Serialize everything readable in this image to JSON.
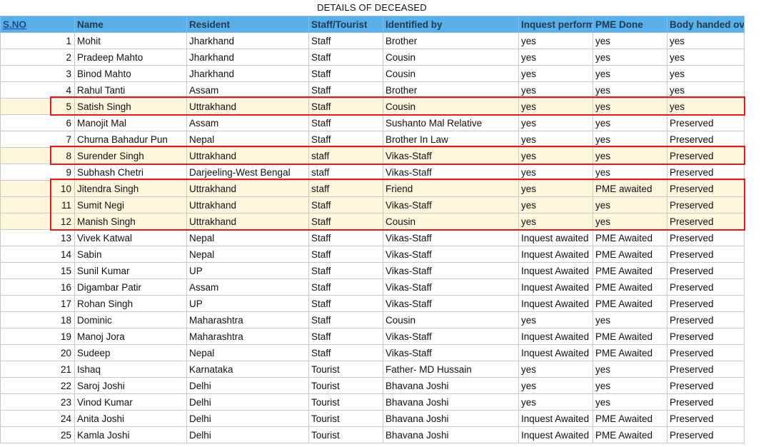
{
  "title": "DETAILS OF DECEASED",
  "columns": [
    "S.NO",
    "Name",
    "Resident",
    "Staff/Tourist",
    "Identified by",
    "Inquest perform",
    "PME Done",
    "Body handed over"
  ],
  "rows": [
    {
      "sno": "1",
      "name": "Mohit",
      "resident": "Jharkhand",
      "type": "Staff",
      "identified_by": "Brother",
      "inquest": "yes",
      "pme": "yes",
      "handed": "yes",
      "highlight": false
    },
    {
      "sno": "2",
      "name": "Pradeep Mahto",
      "resident": "Jharkhand",
      "type": "Staff",
      "identified_by": "Cousin",
      "inquest": "yes",
      "pme": "yes",
      "handed": "yes",
      "highlight": false
    },
    {
      "sno": "3",
      "name": "Binod Mahto",
      "resident": "Jharkhand",
      "type": "Staff",
      "identified_by": "Cousin",
      "inquest": "yes",
      "pme": "yes",
      "handed": "yes",
      "highlight": false
    },
    {
      "sno": "4",
      "name": "Rahul Tanti",
      "resident": "Assam",
      "type": "Staff",
      "identified_by": "Brother",
      "inquest": "yes",
      "pme": "yes",
      "handed": "yes",
      "highlight": false
    },
    {
      "sno": "5",
      "name": "Satish Singh",
      "resident": "Uttrakhand",
      "type": "Staff",
      "identified_by": "Cousin",
      "inquest": "yes",
      "pme": "yes",
      "handed": "yes",
      "highlight": true
    },
    {
      "sno": "6",
      "name": "Manojit Mal",
      "resident": "Assam",
      "type": "Staff",
      "identified_by": "Sushanto Mal Relative",
      "inquest": "yes",
      "pme": "yes",
      "handed": "Preserved",
      "highlight": false
    },
    {
      "sno": "7",
      "name": "Churna Bahadur Pun",
      "resident": "Nepal",
      "type": "Staff",
      "identified_by": "Brother In Law",
      "inquest": "yes",
      "pme": "yes",
      "handed": "Preserved",
      "highlight": false
    },
    {
      "sno": "8",
      "name": "Surender Singh",
      "resident": "Uttrakhand",
      "type": "staff",
      "identified_by": "Vikas-Staff",
      "inquest": "yes",
      "pme": "yes",
      "handed": "Preserved",
      "highlight": true
    },
    {
      "sno": "9",
      "name": "Subhash Chetri",
      "resident": "Darjeeling-West Bengal",
      "type": "staff",
      "identified_by": "Vikas-Staff",
      "inquest": "yes",
      "pme": "yes",
      "handed": "Preserved",
      "highlight": false
    },
    {
      "sno": "10",
      "name": "Jitendra Singh",
      "resident": "Uttrakhand",
      "type": "staff",
      "identified_by": "Friend",
      "inquest": "yes",
      "pme": "PME awaited",
      "handed": "Preserved",
      "highlight": true
    },
    {
      "sno": "11",
      "name": "Sumit Negi",
      "resident": "Uttrakhand",
      "type": "Staff",
      "identified_by": "Vikas-Staff",
      "inquest": "yes",
      "pme": "yes",
      "handed": "Preserved",
      "highlight": true
    },
    {
      "sno": "12",
      "name": "Manish Singh",
      "resident": "Uttrakhand",
      "type": "Staff",
      "identified_by": "Cousin",
      "inquest": "yes",
      "pme": "yes",
      "handed": "Preserved",
      "highlight": true
    },
    {
      "sno": "13",
      "name": "Vivek Katwal",
      "resident": "Nepal",
      "type": "Staff",
      "identified_by": "Vikas-Staff",
      "inquest": "Inquest awaited",
      "pme": "PME Awaited",
      "handed": "Preserved",
      "highlight": false
    },
    {
      "sno": "14",
      "name": "Sabin",
      "resident": "Nepal",
      "type": "Staff",
      "identified_by": "Vikas-Staff",
      "inquest": "Inquest Awaited",
      "pme": "PME Awaited",
      "handed": "Preserved",
      "highlight": false
    },
    {
      "sno": "15",
      "name": "Sunil Kumar",
      "resident": "UP",
      "type": "Staff",
      "identified_by": "Vikas-Staff",
      "inquest": "Inquest Awaited",
      "pme": "PME Awaited",
      "handed": "Preserved",
      "highlight": false
    },
    {
      "sno": "16",
      "name": "Digambar Patir",
      "resident": "Assam",
      "type": "Staff",
      "identified_by": "Vikas-Staff",
      "inquest": "Inquest Awaited",
      "pme": "PME Awaited",
      "handed": "Preserved",
      "highlight": false
    },
    {
      "sno": "17",
      "name": "Rohan Singh",
      "resident": "UP",
      "type": "Staff",
      "identified_by": "Vikas-Staff",
      "inquest": "Inquest Awaited",
      "pme": "PME Awaited",
      "handed": "Preserved",
      "highlight": false
    },
    {
      "sno": "18",
      "name": "Dominic",
      "resident": "Maharashtra",
      "type": "Staff",
      "identified_by": "Cousin",
      "inquest": "yes",
      "pme": "yes",
      "handed": "Preserved",
      "highlight": false
    },
    {
      "sno": "19",
      "name": "Manoj Jora",
      "resident": "Maharashtra",
      "type": "Staff",
      "identified_by": "Vikas-Staff",
      "inquest": "Inquest Awaited",
      "pme": "PME Awaited",
      "handed": "Preserved",
      "highlight": false
    },
    {
      "sno": "20",
      "name": "Sudeep",
      "resident": "Nepal",
      "type": "Staff",
      "identified_by": "Vikas-Staff",
      "inquest": "Inquest Awaited",
      "pme": "PME Awaited",
      "handed": "Preserved",
      "highlight": false
    },
    {
      "sno": "21",
      "name": "Ishaq",
      "resident": "Karnataka",
      "type": "Tourist",
      "identified_by": "Father- MD Hussain",
      "inquest": "yes",
      "pme": "yes",
      "handed": "Preserved",
      "highlight": false
    },
    {
      "sno": "22",
      "name": "Saroj Joshi",
      "resident": "Delhi",
      "type": "Tourist",
      "identified_by": "Bhavana Joshi",
      "inquest": "yes",
      "pme": "yes",
      "handed": "Preserved",
      "highlight": false
    },
    {
      "sno": "23",
      "name": "Vinod Kumar",
      "resident": "Delhi",
      "type": "Tourist",
      "identified_by": "Bhavana Joshi",
      "inquest": "yes",
      "pme": "yes",
      "handed": "Preserved",
      "highlight": false
    },
    {
      "sno": "24",
      "name": "Anita Joshi",
      "resident": "Delhi",
      "type": "Tourist",
      "identified_by": "Bhavana Joshi",
      "inquest": "Inquest Awaited",
      "pme": "PME Awaited",
      "handed": "Preserved",
      "highlight": false
    },
    {
      "sno": "25",
      "name": "Kamla Joshi",
      "resident": "Delhi",
      "type": "Tourist",
      "identified_by": "Bhavana Joshi",
      "inquest": "Inquest Awaited",
      "pme": "PME Awaited",
      "handed": "Preserved",
      "highlight": false
    }
  ],
  "colors": {
    "header_bg": "#5ab0e6",
    "highlight_fill": "#fdf6dc",
    "highlight_border": "#e01b1b"
  }
}
